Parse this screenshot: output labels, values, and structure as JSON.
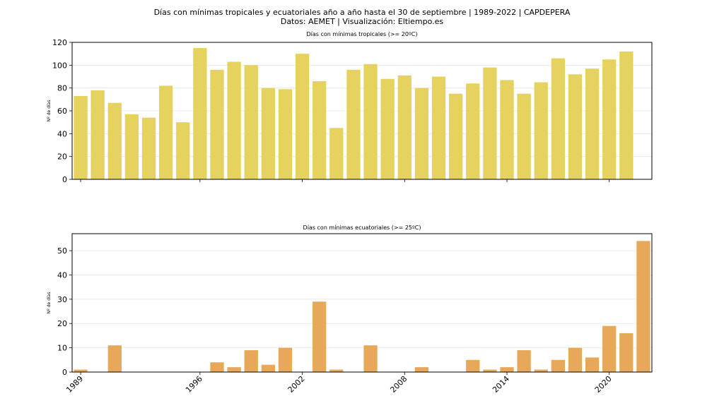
{
  "figure": {
    "title": "Días con mínimas tropicales y ecuatoriales año a año hasta el 30 de septiembre | 1989-2022 | CAPDEPERA",
    "subtitle": "Datos: AEMET | Visualización: Eltiempo.es"
  },
  "colors": {
    "tropical": "#e6d35f",
    "ecuatorial": "#e8a85a",
    "grid": "#e6e6e6",
    "axis": "#000000"
  },
  "chart_data": [
    {
      "type": "bar",
      "title": "Días con mínimas tropicales (>= 20ºC)",
      "xlabel": "",
      "ylabel": "Nº de días",
      "categories": [
        1989,
        1990,
        1991,
        1992,
        1993,
        1994,
        1995,
        1996,
        1997,
        1998,
        1999,
        2000,
        2001,
        2002,
        2003,
        2004,
        2005,
        2006,
        2007,
        2008,
        2009,
        2010,
        2011,
        2012,
        2013,
        2014,
        2015,
        2016,
        2017,
        2018,
        2019,
        2020,
        2021,
        2022
      ],
      "values": [
        73,
        78,
        67,
        57,
        54,
        82,
        50,
        115,
        96,
        103,
        100,
        80,
        79,
        110,
        86,
        45,
        96,
        101,
        88,
        91,
        80,
        90,
        75,
        84,
        98,
        87,
        75,
        85,
        106,
        92,
        97,
        105,
        112,
        0
      ],
      "ylim": [
        0,
        120
      ],
      "yticks": [
        0,
        20,
        40,
        60,
        80,
        100,
        120
      ],
      "xticks": [],
      "grid": "horizontal"
    },
    {
      "type": "bar",
      "title": "Días con mínimas ecuatoriales (>= 25ºC)",
      "xlabel": "",
      "ylabel": "Nº de días",
      "categories": [
        1989,
        1990,
        1991,
        1992,
        1993,
        1994,
        1995,
        1996,
        1997,
        1998,
        1999,
        2000,
        2001,
        2002,
        2003,
        2004,
        2005,
        2006,
        2007,
        2008,
        2009,
        2010,
        2011,
        2012,
        2013,
        2014,
        2015,
        2016,
        2017,
        2018,
        2019,
        2020,
        2021,
        2022
      ],
      "values": [
        1,
        0,
        11,
        0,
        0,
        0,
        0,
        0,
        4,
        2,
        9,
        3,
        10,
        0,
        29,
        1,
        0,
        11,
        0,
        0,
        2,
        0,
        0,
        5,
        1,
        2,
        9,
        1,
        5,
        10,
        6,
        19,
        16,
        54
      ],
      "ylim": [
        0,
        57
      ],
      "yticks": [
        0,
        10,
        20,
        30,
        40,
        50
      ],
      "xticks": [
        1989,
        1996,
        2002,
        2008,
        2014,
        2020
      ],
      "grid": "horizontal"
    }
  ]
}
